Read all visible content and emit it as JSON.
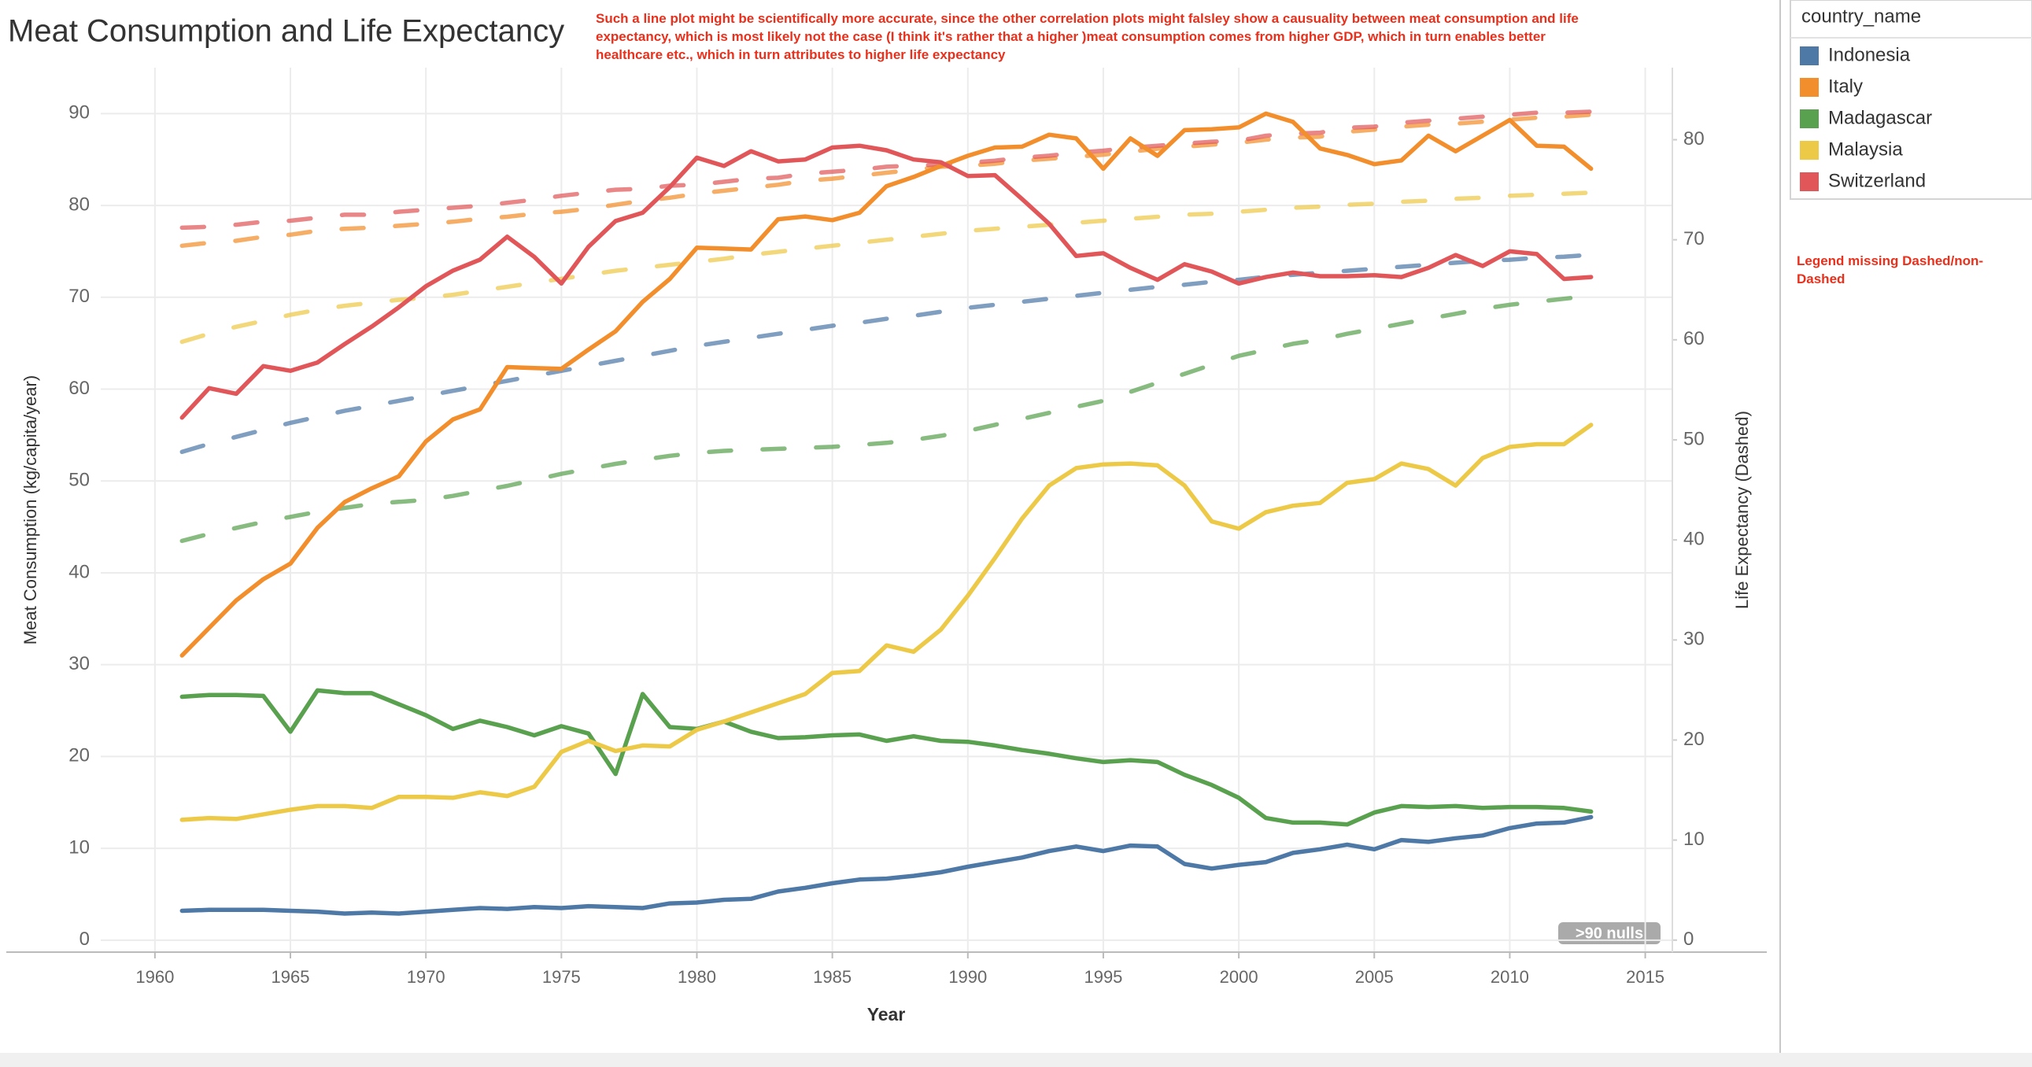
{
  "chart_data": {
    "type": "line",
    "title": "Meat Consumption and Life Expectancy",
    "annotation": "Such a line plot might be scientifically more accurate, since the other correlation plots might falsley show a causuality between meat consumption and life expectancy, which is most likely not the case (I think it's rather that a higher )meat consumption comes from higher GDP, which in turn enables better healthcare etc., which in turn attributes to higher life expectancy",
    "side_note": "Legend missing Dashed/non-Dashed",
    "nulls_badge": ">90 nulls",
    "x_label": "Year",
    "y_label": "Meat Consumption (kg/capita/year)",
    "y2_label": "Life Expectancy (Dashed)",
    "legend_title": "country_name",
    "grid": true,
    "xlim": [
      1958,
      2016
    ],
    "xticks": [
      1960,
      1965,
      1970,
      1975,
      1980,
      1985,
      1990,
      1995,
      2000,
      2005,
      2010,
      2015
    ],
    "ylim": [
      -1.3,
      95
    ],
    "yticks": [
      0,
      10,
      20,
      30,
      40,
      50,
      60,
      70,
      80,
      90
    ],
    "y2lim": [
      -1.2,
      87.2
    ],
    "y2ticks": [
      0,
      10,
      20,
      30,
      40,
      50,
      60,
      70,
      80
    ],
    "x": [
      1961,
      1962,
      1963,
      1964,
      1965,
      1966,
      1967,
      1968,
      1969,
      1970,
      1971,
      1972,
      1973,
      1974,
      1975,
      1976,
      1977,
      1978,
      1979,
      1980,
      1981,
      1982,
      1983,
      1984,
      1985,
      1986,
      1987,
      1988,
      1989,
      1990,
      1991,
      1992,
      1993,
      1994,
      1995,
      1996,
      1997,
      1998,
      1999,
      2000,
      2001,
      2002,
      2003,
      2004,
      2005,
      2006,
      2007,
      2008,
      2009,
      2010,
      2011,
      2012,
      2013
    ],
    "series": [
      {
        "name": "Indonesia",
        "color": "#4e79a7",
        "values": [
          3.2,
          3.3,
          3.3,
          3.3,
          3.2,
          3.1,
          2.9,
          3.0,
          2.9,
          3.1,
          3.3,
          3.5,
          3.4,
          3.6,
          3.5,
          3.7,
          3.6,
          3.5,
          4.0,
          4.1,
          4.4,
          4.5,
          5.3,
          5.7,
          6.2,
          6.6,
          6.7,
          7.0,
          7.4,
          8.0,
          8.5,
          9.0,
          9.7,
          10.2,
          9.7,
          10.3,
          10.2,
          8.3,
          7.8,
          8.2,
          8.5,
          9.5,
          9.9,
          10.4,
          9.9,
          10.9,
          10.7,
          11.1,
          11.4,
          12.2,
          12.7,
          12.8,
          13.4
        ]
      },
      {
        "name": "Italy",
        "color": "#f28e2b",
        "values": [
          31,
          34,
          37,
          39.3,
          41,
          44.9,
          47.7,
          49.2,
          50.5,
          54.3,
          56.7,
          57.8,
          62.4,
          62.3,
          62.2,
          64.3,
          66.3,
          69.5,
          72,
          75.4,
          75.3,
          75.2,
          78.5,
          78.8,
          78.4,
          79.2,
          82.1,
          83.1,
          84.3,
          85.4,
          86.3,
          86.4,
          87.7,
          87.3,
          84,
          87.3,
          85.4,
          88.2,
          88.3,
          88.5,
          90,
          89.1,
          86.2,
          85.5,
          84.5,
          84.9,
          87.6,
          85.9,
          87.6,
          89.3,
          86.5,
          86.4,
          84
        ]
      },
      {
        "name": "Madagascar",
        "color": "#59a14f",
        "values": [
          26.5,
          26.7,
          26.7,
          26.6,
          22.7,
          27.2,
          26.9,
          26.9,
          25.7,
          24.5,
          23,
          23.9,
          23.2,
          22.3,
          23.3,
          22.5,
          18.1,
          26.8,
          23.2,
          23,
          23.8,
          22.7,
          22,
          22.1,
          22.3,
          22.4,
          21.7,
          22.2,
          21.7,
          21.6,
          21.2,
          20.7,
          20.3,
          19.8,
          19.4,
          19.6,
          19.4,
          18,
          16.9,
          15.5,
          13.3,
          12.8,
          12.8,
          12.6,
          13.9,
          14.6,
          14.5,
          14.6,
          14.4,
          14.5,
          14.5,
          14.4,
          14
        ]
      },
      {
        "name": "Malaysia",
        "color": "#edc948",
        "values": [
          13.1,
          13.3,
          13.2,
          13.7,
          14.2,
          14.6,
          14.6,
          14.4,
          15.6,
          15.6,
          15.5,
          16.1,
          15.7,
          16.7,
          20.5,
          21.7,
          20.6,
          21.2,
          21.1,
          22.9,
          23.8,
          24.8,
          25.8,
          26.8,
          29.1,
          29.3,
          32.1,
          31.4,
          33.8,
          37.5,
          41.6,
          45.9,
          49.5,
          51.4,
          51.8,
          51.9,
          51.7,
          49.5,
          45.6,
          44.8,
          46.6,
          47.3,
          47.6,
          49.8,
          50.2,
          51.9,
          51.3,
          49.5,
          52.5,
          53.7,
          54,
          54,
          56.1
        ]
      },
      {
        "name": "Switzerland",
        "color": "#e15759",
        "values": [
          56.9,
          60.1,
          59.5,
          62.5,
          62,
          62.9,
          64.9,
          66.8,
          68.9,
          71.2,
          72.9,
          74.1,
          76.6,
          74.4,
          71.5,
          75.5,
          78.3,
          79.2,
          82,
          85.2,
          84.3,
          85.9,
          84.8,
          85,
          86.3,
          86.5,
          86,
          85,
          84.7,
          83.2,
          83.3,
          80.7,
          78,
          74.5,
          74.8,
          73.2,
          71.9,
          73.6,
          72.8,
          71.5,
          72.2,
          72.7,
          72.3,
          72.3,
          72.4,
          72.2,
          73.2,
          74.6,
          73.4,
          75,
          74.7,
          72,
          72.2
        ]
      },
      {
        "color": "#4e79a7",
        "axis": "y2",
        "dashed": true,
        "values": [
          48.8,
          49.6,
          50.3,
          51.0,
          51.7,
          52.3,
          52.9,
          53.4,
          53.9,
          54.4,
          54.9,
          55.4,
          55.9,
          56.4,
          56.9,
          57.4,
          57.9,
          58.4,
          58.9,
          59.4,
          59.8,
          60.2,
          60.6,
          61.0,
          61.4,
          61.7,
          62.1,
          62.4,
          62.8,
          63.2,
          63.5,
          63.8,
          64.1,
          64.4,
          64.7,
          65.0,
          65.3,
          65.5,
          65.8,
          66.0,
          66.3,
          66.5,
          66.7,
          66.9,
          67.1,
          67.3,
          67.5,
          67.7,
          67.9,
          68.0,
          68.2,
          68.3,
          68.5
        ]
      },
      {
        "color": "#f28e2b",
        "axis": "y2",
        "dashed": true,
        "values": [
          69.4,
          69.7,
          69.9,
          70.3,
          70.5,
          70.9,
          71.1,
          71.2,
          71.4,
          71.6,
          71.8,
          72.1,
          72.3,
          72.6,
          72.8,
          73.1,
          73.5,
          73.9,
          74.2,
          74.6,
          74.9,
          75.2,
          75.5,
          75.9,
          76.1,
          76.4,
          76.7,
          77.0,
          77.3,
          77.4,
          77.6,
          77.9,
          78.1,
          78.3,
          78.5,
          78.8,
          79.1,
          79.3,
          79.5,
          79.7,
          80.0,
          80.2,
          80.3,
          80.8,
          81.0,
          81.3,
          81.5,
          81.6,
          81.8,
          82.0,
          82.2,
          82.3,
          82.5
        ]
      },
      {
        "color": "#59a14f",
        "axis": "y2",
        "dashed": true,
        "values": [
          39.9,
          40.6,
          41.2,
          41.8,
          42.3,
          42.8,
          43.2,
          43.6,
          43.8,
          44.0,
          44.4,
          44.9,
          45.4,
          46.0,
          46.6,
          47.1,
          47.6,
          48.0,
          48.4,
          48.7,
          48.9,
          49.0,
          49.1,
          49.2,
          49.3,
          49.5,
          49.7,
          50.0,
          50.4,
          50.9,
          51.5,
          52.1,
          52.7,
          53.3,
          53.9,
          54.8,
          55.7,
          56.6,
          57.5,
          58.4,
          59.0,
          59.6,
          60.0,
          60.6,
          61.1,
          61.6,
          62.1,
          62.6,
          63.1,
          63.5,
          63.8,
          64.1,
          64.4
        ]
      },
      {
        "color": "#edc948",
        "axis": "y2",
        "dashed": true,
        "values": [
          59.8,
          60.6,
          61.3,
          61.9,
          62.5,
          63.0,
          63.4,
          63.7,
          64.0,
          64.2,
          64.5,
          64.9,
          65.3,
          65.7,
          66.1,
          66.5,
          66.9,
          67.2,
          67.5,
          67.8,
          68.1,
          68.5,
          68.8,
          69.1,
          69.4,
          69.7,
          70.0,
          70.3,
          70.6,
          70.9,
          71.1,
          71.3,
          71.5,
          71.7,
          71.9,
          72.1,
          72.3,
          72.5,
          72.6,
          72.8,
          73.0,
          73.2,
          73.3,
          73.5,
          73.6,
          73.8,
          73.9,
          74.1,
          74.2,
          74.4,
          74.5,
          74.6,
          74.7
        ]
      },
      {
        "color": "#e15759",
        "axis": "y2",
        "dashed": true,
        "values": [
          71.2,
          71.3,
          71.5,
          71.8,
          71.9,
          72.2,
          72.5,
          72.5,
          72.8,
          73.0,
          73.2,
          73.4,
          73.7,
          74.0,
          74.4,
          74.7,
          75.0,
          75.1,
          75.4,
          75.5,
          75.8,
          76.1,
          76.2,
          76.6,
          76.8,
          77.0,
          77.3,
          77.4,
          77.5,
          77.7,
          77.9,
          78.2,
          78.4,
          78.7,
          78.9,
          79.2,
          79.4,
          79.6,
          79.8,
          79.9,
          80.4,
          80.6,
          80.7,
          81.2,
          81.3,
          81.7,
          81.9,
          82.1,
          82.3,
          82.5,
          82.7,
          82.7,
          82.8
        ]
      }
    ]
  }
}
